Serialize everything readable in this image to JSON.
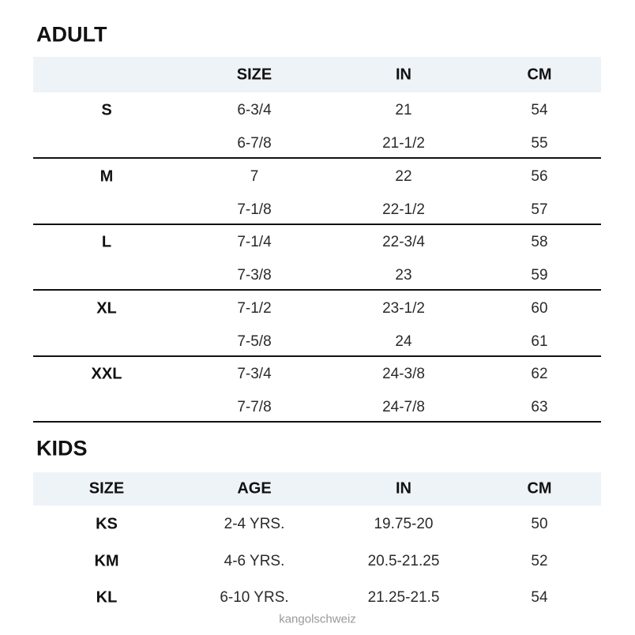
{
  "adult": {
    "title": "ADULT",
    "headers": [
      "SIZE",
      "IN",
      "CM"
    ],
    "groups": [
      {
        "label": "S",
        "rows": [
          [
            "6-3/4",
            "21",
            "54"
          ],
          [
            "6-7/8",
            "21-1/2",
            "55"
          ]
        ]
      },
      {
        "label": "M",
        "rows": [
          [
            "7",
            "22",
            "56"
          ],
          [
            "7-1/8",
            "22-1/2",
            "57"
          ]
        ]
      },
      {
        "label": "L",
        "rows": [
          [
            "7-1/4",
            "22-3/4",
            "58"
          ],
          [
            "7-3/8",
            "23",
            "59"
          ]
        ]
      },
      {
        "label": "XL",
        "rows": [
          [
            "7-1/2",
            "23-1/2",
            "60"
          ],
          [
            "7-5/8",
            "24",
            "61"
          ]
        ]
      },
      {
        "label": "XXL",
        "rows": [
          [
            "7-3/4",
            "24-3/8",
            "62"
          ],
          [
            "7-7/8",
            "24-7/8",
            "63"
          ]
        ]
      }
    ]
  },
  "kids": {
    "title": "KIDS",
    "headers": [
      "SIZE",
      "AGE",
      "IN",
      "CM"
    ],
    "rows": [
      [
        "KS",
        "2-4 YRS.",
        "19.75-20",
        "50"
      ],
      [
        "KM",
        "4-6 YRS.",
        "20.5-21.25",
        "52"
      ],
      [
        "KL",
        "6-10 YRS.",
        "21.25-21.5",
        "54"
      ]
    ]
  },
  "watermark": "kangolschweiz"
}
